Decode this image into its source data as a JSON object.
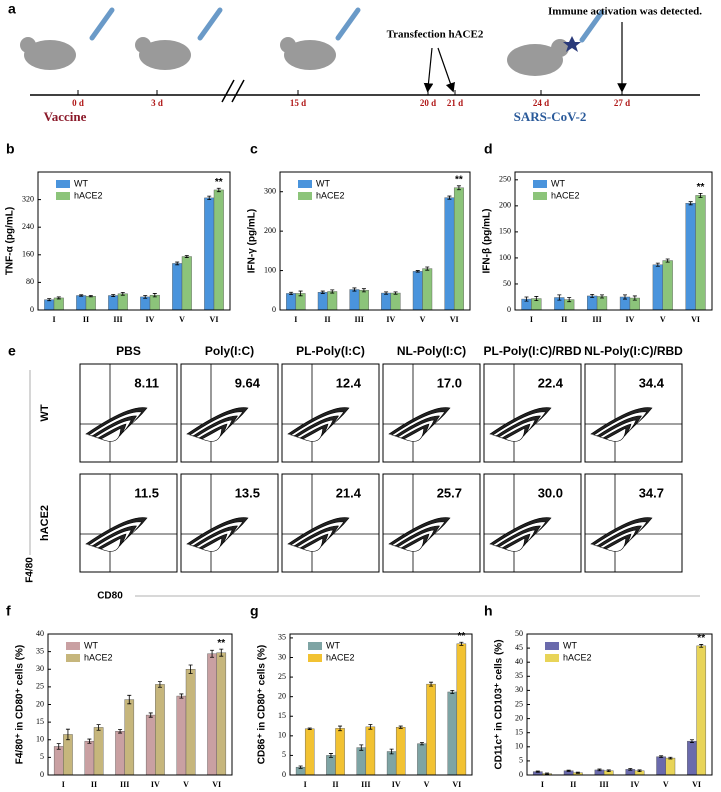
{
  "timeline": {
    "panel": "a",
    "days": [
      "0 d",
      "3 d",
      "15 d",
      "20 d",
      "21 d",
      "24 d",
      "27 d"
    ],
    "vaccine": "Vaccine",
    "virus": "SARS-CoV-2",
    "transfection": "Transfection hACE2",
    "detection": "Immune activation was detected."
  },
  "flow": {
    "panel": "e",
    "columns": [
      "PBS",
      "Poly(I:C)",
      "PL-Poly(I:C)",
      "NL-Poly(I:C)",
      "PL-Poly(I:C)/RBD",
      "NL-Poly(I:C)/RBD"
    ],
    "rows": [
      "WT",
      "hACE2"
    ],
    "values": [
      [
        "8.11",
        "9.64",
        "12.4",
        "17.0",
        "22.4",
        "34.4"
      ],
      [
        "11.5",
        "13.5",
        "21.4",
        "25.7",
        "30.0",
        "34.7"
      ]
    ],
    "y_axis": "F4/80",
    "x_axis": "CD80"
  },
  "chart_data": [
    {
      "type": "bar",
      "panel": "b",
      "y_label": "TNF-α (pg/mL)",
      "categories": [
        "I",
        "II",
        "III",
        "IV",
        "V",
        "VI"
      ],
      "ylim": [
        0,
        400
      ],
      "yticks": [
        0,
        80,
        160,
        240,
        320
      ],
      "annotation": "**",
      "series": [
        {
          "name": "WT",
          "color": "#4a94dc",
          "values": [
            30,
            42,
            42,
            38,
            135,
            325
          ],
          "errors": [
            3,
            2,
            3,
            4,
            4,
            5
          ]
        },
        {
          "name": "hACE2",
          "color": "#8cc47a",
          "values": [
            35,
            40,
            47,
            43,
            155,
            348
          ],
          "errors": [
            3,
            2,
            4,
            5,
            3,
            5
          ]
        }
      ]
    },
    {
      "type": "bar",
      "panel": "c",
      "y_label": "IFN-γ (pg/mL)",
      "categories": [
        "I",
        "II",
        "III",
        "IV",
        "V",
        "VI"
      ],
      "ylim": [
        0,
        350
      ],
      "yticks": [
        0,
        100,
        200,
        300
      ],
      "annotation": "**",
      "series": [
        {
          "name": "WT",
          "color": "#4a94dc",
          "values": [
            42,
            45,
            52,
            43,
            98,
            285
          ],
          "errors": [
            3,
            3,
            4,
            3,
            2,
            4
          ]
        },
        {
          "name": "hACE2",
          "color": "#8cc47a",
          "values": [
            42,
            47,
            50,
            43,
            105,
            310
          ],
          "errors": [
            6,
            4,
            4,
            3,
            4,
            5
          ]
        }
      ]
    },
    {
      "type": "bar",
      "panel": "d",
      "y_label": "IFN-β (pg/mL)",
      "categories": [
        "I",
        "II",
        "III",
        "IV",
        "V",
        "VI"
      ],
      "ylim": [
        0,
        265
      ],
      "yticks": [
        0,
        50,
        100,
        150,
        200,
        250
      ],
      "annotation": "**",
      "series": [
        {
          "name": "WT",
          "color": "#4a94dc",
          "values": [
            21,
            24,
            27,
            25,
            87,
            205
          ],
          "errors": [
            4,
            5,
            3,
            4,
            3,
            3
          ]
        },
        {
          "name": "hACE2",
          "color": "#8cc47a",
          "values": [
            22,
            20,
            26,
            23,
            95,
            220
          ],
          "errors": [
            4,
            4,
            3,
            4,
            3,
            4
          ]
        }
      ]
    },
    {
      "type": "bar",
      "panel": "f",
      "y_label": "F4/80⁺ in CD80⁺ cells (%)",
      "categories": [
        "I",
        "II",
        "III",
        "IV",
        "V",
        "VI"
      ],
      "ylim": [
        0,
        40
      ],
      "yticks": [
        0,
        5,
        10,
        15,
        20,
        25,
        30,
        35,
        40
      ],
      "annotation": "**",
      "series": [
        {
          "name": "WT",
          "color": "#c9a0a2",
          "values": [
            8.1,
            9.6,
            12.4,
            17,
            22.4,
            34.4
          ],
          "errors": [
            0.8,
            0.6,
            0.5,
            0.6,
            0.6,
            1
          ]
        },
        {
          "name": "hACE2",
          "color": "#c6b67c",
          "values": [
            11.5,
            13.5,
            21.4,
            25.7,
            30,
            34.7
          ],
          "errors": [
            1.5,
            0.8,
            1.2,
            0.8,
            1.2,
            1
          ]
        }
      ]
    },
    {
      "type": "bar",
      "panel": "g",
      "y_label": "CD86⁺ in CD80⁺ cells (%)",
      "categories": [
        "I",
        "II",
        "III",
        "IV",
        "V",
        "VI"
      ],
      "ylim": [
        0,
        36
      ],
      "yticks": [
        0,
        5,
        10,
        15,
        20,
        25,
        30,
        35
      ],
      "annotation": "**",
      "series": [
        {
          "name": "WT",
          "color": "#7ea4a4",
          "values": [
            2,
            5,
            7,
            6,
            8,
            21.2
          ],
          "errors": [
            0.3,
            0.5,
            0.7,
            0.6,
            0.3,
            0.4
          ]
        },
        {
          "name": "hACE2",
          "color": "#f2c232",
          "values": [
            11.8,
            11.9,
            12.3,
            12.2,
            23.2,
            33.5
          ],
          "errors": [
            0.2,
            0.6,
            0.6,
            0.3,
            0.5,
            0.4
          ]
        }
      ]
    },
    {
      "type": "bar",
      "panel": "h",
      "y_label": "CD11c⁺ in CD103⁺ cells (%)",
      "categories": [
        "I",
        "II",
        "III",
        "IV",
        "V",
        "VI"
      ],
      "ylim": [
        0,
        50
      ],
      "yticks": [
        0,
        5,
        10,
        15,
        20,
        25,
        30,
        35,
        40,
        45,
        50
      ],
      "annotation": "**",
      "series": [
        {
          "name": "WT",
          "color": "#6a6aac",
          "values": [
            1.2,
            1.5,
            1.8,
            2,
            6.5,
            12
          ],
          "errors": [
            0.2,
            0.2,
            0.3,
            0.3,
            0.3,
            0.5
          ]
        },
        {
          "name": "hACE2",
          "color": "#e8d458",
          "values": [
            0.5,
            0.8,
            1.5,
            1.5,
            6,
            45.8
          ],
          "errors": [
            0.2,
            0.2,
            0.3,
            0.3,
            0.3,
            0.5
          ]
        }
      ]
    }
  ]
}
